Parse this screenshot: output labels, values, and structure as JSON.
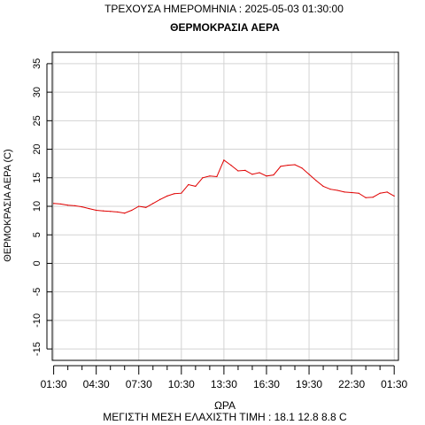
{
  "header": {
    "current_date": "ΤΡΕΧΟΥΣΑ ΗΜΕΡΟΜΗΝΙΑ : 2025-05-03 01:30:00"
  },
  "footer": {
    "stats": "ΜΕΓΙΣΤΗ ΜΕΣΗ ΕΛΑΧΙΣΤΗ ΤΙΜΗ :  18.1  12.8  8.8   C"
  },
  "colors": {
    "series": "#e00000",
    "grid": "#d3d3d3",
    "axis": "#000000"
  },
  "chart_data": {
    "type": "line",
    "title": "ΘΕΡΜΟΚΡΑΣΙΑ ΑΕΡΑ",
    "xlabel": "ΩΡΑ",
    "ylabel": "ΘΕΡΜΟΚΡΑΣΙΑ ΑΕΡΑ (C)",
    "ylim": [
      -17,
      37
    ],
    "yticks": [
      -15,
      -10,
      -5,
      0,
      5,
      10,
      15,
      20,
      25,
      30,
      35
    ],
    "xlim": [
      -0.1,
      24.3
    ],
    "xticks_major": [
      0,
      3,
      6,
      9,
      12,
      15,
      18,
      21,
      24
    ],
    "xticks_minor": [
      1,
      2,
      4,
      5,
      7,
      8,
      10,
      11,
      13,
      14,
      16,
      17,
      19,
      20,
      22,
      23
    ],
    "xtick_labels": [
      "01:30",
      "04:30",
      "07:30",
      "10:30",
      "13:30",
      "16:30",
      "19:30",
      "22:30",
      "01:30"
    ],
    "grid": true,
    "series": [
      {
        "x": [
          0,
          0.5,
          1,
          1.5,
          2,
          2.5,
          3,
          3.5,
          4,
          4.5,
          5,
          5.5,
          6,
          6.5,
          7,
          7.5,
          8,
          8.5,
          9,
          9.5,
          10,
          10.5,
          11,
          11.5,
          12,
          12.5,
          13,
          13.5,
          14,
          14.5,
          15,
          15.5,
          16,
          16.5,
          17,
          17.5,
          18,
          18.5,
          19,
          19.5,
          20,
          20.5,
          21,
          21.5,
          22,
          22.5,
          23,
          23.5,
          24
        ],
        "values": [
          10.5,
          10.4,
          10.2,
          10.1,
          9.9,
          9.6,
          9.3,
          9.2,
          9.1,
          9.0,
          8.8,
          9.3,
          10.0,
          9.8,
          10.5,
          11.2,
          11.8,
          12.2,
          12.3,
          13.8,
          13.5,
          15.0,
          15.3,
          15.2,
          18.1,
          17.2,
          16.2,
          16.3,
          15.6,
          15.9,
          15.3,
          15.5,
          17.0,
          17.2,
          17.3,
          16.7,
          15.6,
          14.5,
          13.5,
          13.0,
          12.8,
          12.5,
          12.4,
          12.3,
          11.5,
          11.6,
          12.3,
          12.5,
          11.8
        ]
      }
    ]
  }
}
